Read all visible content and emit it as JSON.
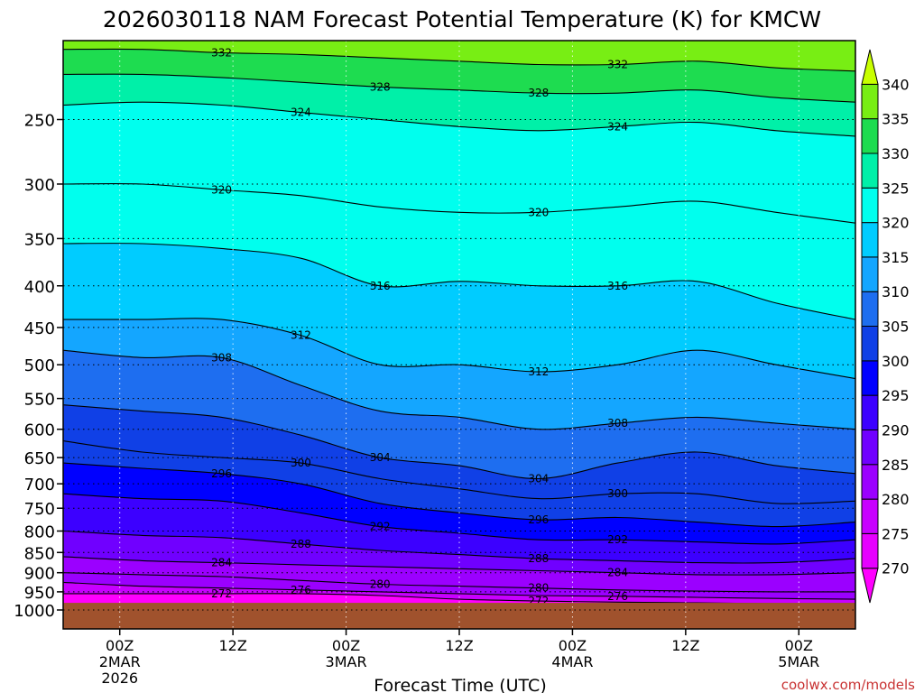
{
  "chart_data": {
    "type": "heatmap",
    "title": "2026030118 NAM Forecast Potential Temperature (K) for KMCW",
    "xlabel": "Forecast Time (UTC)",
    "ylabel": "",
    "credit": "coolwx.com/models",
    "y_axis": {
      "scale": "log",
      "ylim": [
        1000,
        200
      ],
      "ticks": [
        250,
        300,
        350,
        400,
        450,
        500,
        550,
        600,
        650,
        700,
        750,
        800,
        850,
        900,
        950,
        1000
      ]
    },
    "x_axis": {
      "xlim": [
        "2026-03-01T18Z",
        "2026-03-05T06Z"
      ],
      "ticks": [
        {
          "time": "2026-03-02T00Z",
          "lines": [
            "00Z",
            "2MAR",
            "2026"
          ]
        },
        {
          "time": "2026-03-02T12Z",
          "lines": [
            "12Z"
          ]
        },
        {
          "time": "2026-03-03T00Z",
          "lines": [
            "00Z",
            "3MAR"
          ]
        },
        {
          "time": "2026-03-03T12Z",
          "lines": [
            "12Z"
          ]
        },
        {
          "time": "2026-03-04T00Z",
          "lines": [
            "00Z",
            "4MAR"
          ]
        },
        {
          "time": "2026-03-04T12Z",
          "lines": [
            "12Z"
          ]
        },
        {
          "time": "2026-03-05T00Z",
          "lines": [
            "00Z",
            "5MAR"
          ]
        }
      ]
    },
    "grid": true,
    "colorbar": {
      "placement": "right",
      "levels": [
        270,
        275,
        280,
        285,
        290,
        295,
        300,
        305,
        310,
        315,
        320,
        325,
        330,
        335,
        340
      ],
      "colors": [
        "#ff00ff",
        "#e600ff",
        "#c800ff",
        "#9b00ff",
        "#7000ff",
        "#3c00ff",
        "#0000ff",
        "#1040e6",
        "#1e6ef0",
        "#14a6ff",
        "#00ccff",
        "#00ffee",
        "#00f0a8",
        "#1edc50",
        "#78ee14",
        "#c8ff00"
      ]
    },
    "contours": [
      {
        "label": "272",
        "p": [
          955,
          955,
          955,
          955,
          960,
          970,
          975,
          978,
          980,
          982,
          982
        ]
      },
      {
        "label": "276",
        "p": [
          925,
          935,
          940,
          945,
          950,
          955,
          960,
          962,
          965,
          968,
          970
        ]
      },
      {
        "label": "280",
        "p": [
          900,
          905,
          910,
          920,
          930,
          935,
          940,
          945,
          948,
          950,
          950
        ]
      },
      {
        "label": "284",
        "p": [
          860,
          870,
          875,
          880,
          885,
          890,
          895,
          900,
          905,
          905,
          900
        ]
      },
      {
        "label": "288",
        "p": [
          800,
          810,
          815,
          830,
          845,
          855,
          865,
          870,
          875,
          875,
          865
        ]
      },
      {
        "label": "292",
        "p": [
          720,
          730,
          735,
          760,
          790,
          805,
          820,
          820,
          825,
          830,
          820
        ]
      },
      {
        "label": "296",
        "p": [
          660,
          670,
          680,
          700,
          740,
          760,
          775,
          770,
          780,
          790,
          780
        ]
      },
      {
        "label": "300",
        "p": [
          620,
          640,
          650,
          660,
          690,
          710,
          730,
          720,
          720,
          740,
          735
        ]
      },
      {
        "label": "304",
        "p": [
          560,
          570,
          580,
          610,
          650,
          665,
          690,
          660,
          640,
          665,
          680
        ]
      },
      {
        "label": "308",
        "p": [
          480,
          490,
          490,
          530,
          570,
          580,
          600,
          590,
          580,
          590,
          600
        ]
      },
      {
        "label": "312",
        "p": [
          440,
          440,
          440,
          460,
          500,
          500,
          510,
          500,
          480,
          500,
          520
        ]
      },
      {
        "label": "316",
        "p": [
          355,
          355,
          360,
          370,
          400,
          395,
          400,
          400,
          395,
          420,
          440
        ]
      },
      {
        "label": "320",
        "p": [
          300,
          300,
          305,
          310,
          320,
          325,
          325,
          320,
          315,
          325,
          335
        ]
      },
      {
        "label": "324",
        "p": [
          240,
          238,
          240,
          245,
          250,
          255,
          258,
          255,
          252,
          258,
          262
        ]
      },
      {
        "label": "328",
        "p": [
          220,
          220,
          222,
          225,
          228,
          230,
          232,
          232,
          230,
          235,
          238
        ]
      },
      {
        "label": "332",
        "p": [
          205,
          205,
          207,
          208,
          210,
          212,
          214,
          214,
          212,
          216,
          218
        ]
      }
    ],
    "terrain": {
      "color": "#a0522d",
      "p_top": 980
    }
  }
}
